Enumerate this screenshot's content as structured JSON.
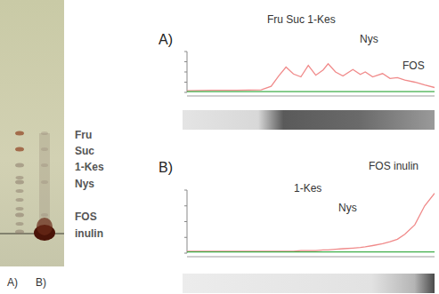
{
  "tlc_plate": {
    "compounds": [
      "Fru",
      "Suc",
      "1-Kes",
      "Nys",
      "FOS",
      "inulin"
    ],
    "lanes": [
      "A)",
      "B)"
    ]
  },
  "chart_data": [
    {
      "type": "line",
      "title": "A)",
      "annotations": [
        "Fru Suc 1-Kes",
        "Nys",
        "FOS"
      ],
      "x": [
        0,
        10,
        20,
        30,
        34,
        37,
        40,
        43,
        46,
        49,
        52,
        55,
        57,
        60,
        63,
        67,
        70,
        72,
        75,
        79,
        82,
        85,
        88,
        92,
        96,
        100
      ],
      "series": [
        {
          "color": "#f08a8a",
          "values": [
            4,
            5,
            5,
            6,
            15,
            40,
            62,
            45,
            38,
            66,
            42,
            55,
            70,
            50,
            40,
            56,
            44,
            50,
            38,
            46,
            34,
            36,
            30,
            25,
            18,
            12
          ]
        },
        {
          "color": "#3fae49",
          "values": [
            2,
            2,
            2,
            2,
            2,
            2,
            2,
            2,
            2,
            2,
            2,
            2,
            2,
            2,
            2,
            2,
            2,
            2,
            2,
            2,
            2,
            2,
            2,
            2,
            2,
            2
          ]
        }
      ],
      "xlim": [
        0,
        100
      ],
      "ylim": [
        0,
        100
      ],
      "yticks": [
        0,
        25,
        50,
        75,
        100
      ],
      "tick_labels": false
    },
    {
      "type": "line",
      "title": "B)",
      "annotations": [
        "FOS  inulin",
        "1-Kes",
        "Nys"
      ],
      "x": [
        0,
        10,
        20,
        30,
        34,
        37,
        40,
        43,
        46,
        49,
        52,
        55,
        57,
        60,
        63,
        67,
        70,
        72,
        75,
        79,
        82,
        85,
        88,
        92,
        96,
        100
      ],
      "series": [
        {
          "color": "#f08a8a",
          "values": [
            3,
            3,
            3,
            3,
            3,
            3,
            3,
            3,
            4,
            4,
            4,
            5,
            5,
            6,
            7,
            8,
            9,
            10,
            12,
            15,
            18,
            22,
            30,
            45,
            75,
            95
          ]
        },
        {
          "color": "#3fae49",
          "values": [
            2,
            2,
            2,
            2,
            2,
            2,
            2,
            2,
            2,
            2,
            2,
            2,
            2,
            2,
            2,
            2,
            2,
            2,
            2,
            2,
            2,
            2,
            2,
            2,
            2,
            2
          ]
        }
      ],
      "xlim": [
        0,
        100
      ],
      "ylim": [
        0,
        100
      ],
      "yticks": [
        0,
        25,
        50,
        75,
        100
      ],
      "tick_labels": false
    }
  ]
}
